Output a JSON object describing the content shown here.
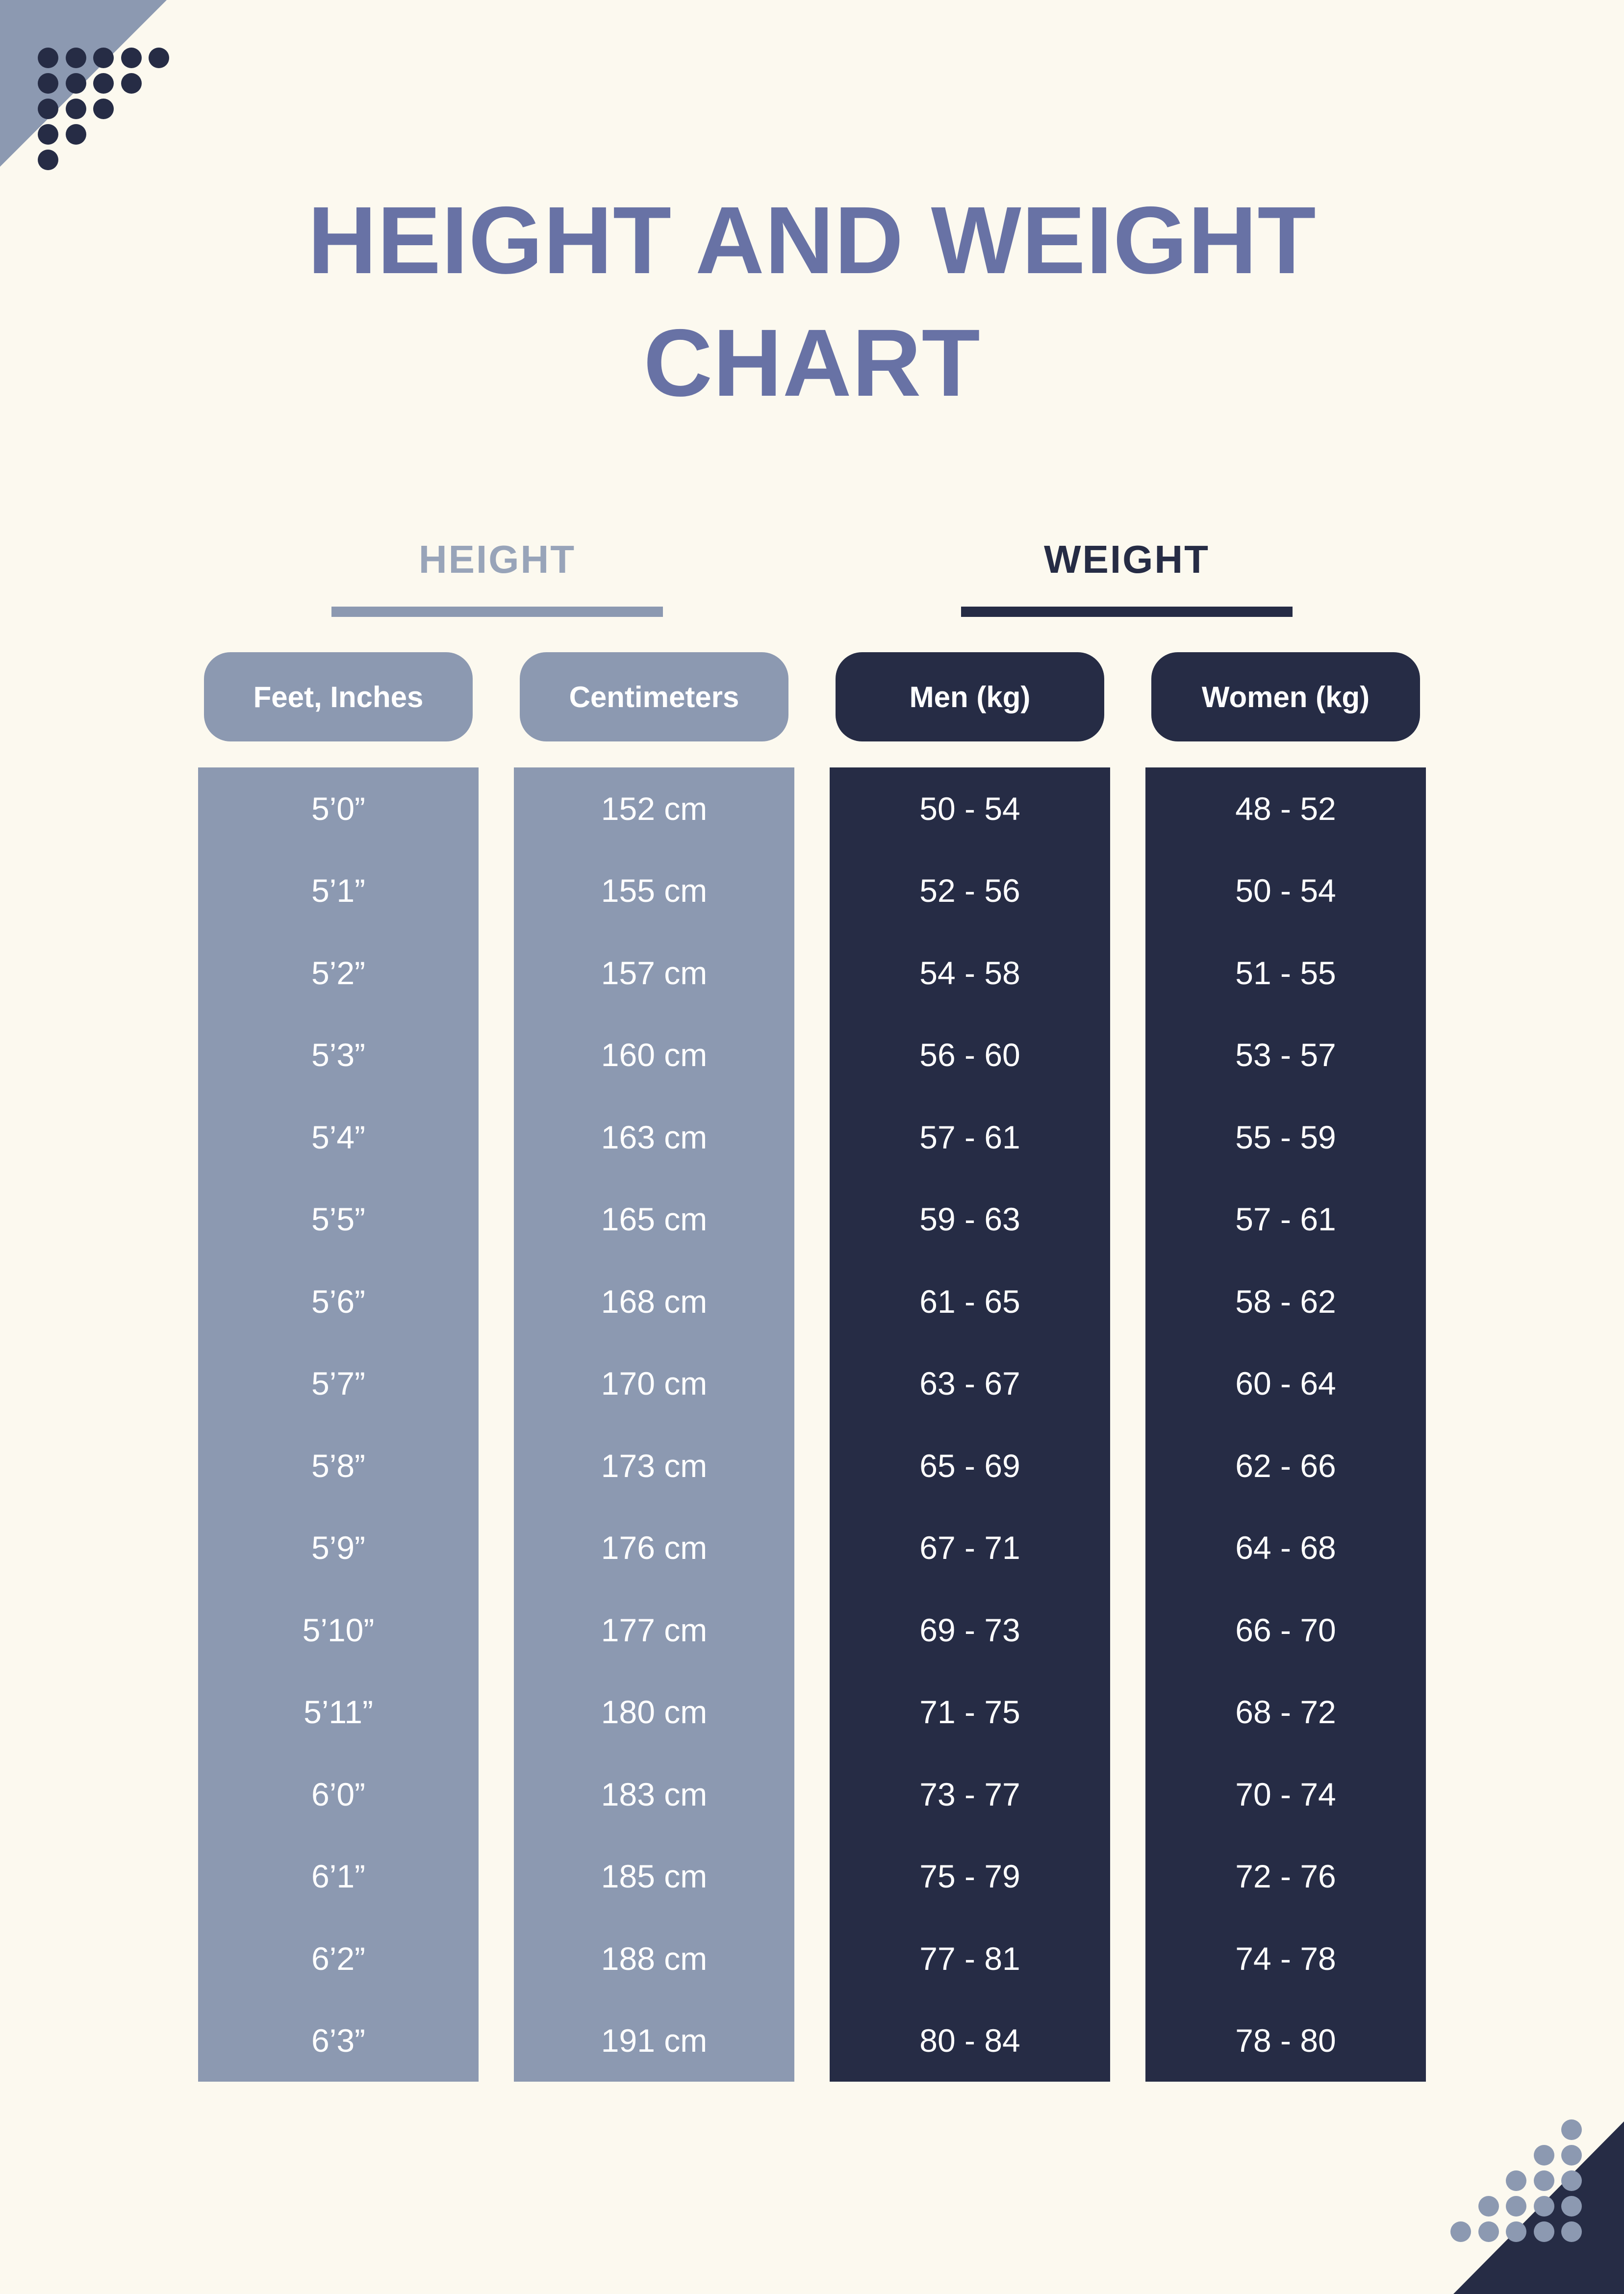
{
  "page": {
    "title_line1": "HEIGHT AND WEIGHT",
    "title_line2": "CHART"
  },
  "sections": {
    "height_label": "HEIGHT",
    "weight_label": "WEIGHT"
  },
  "chart_data": {
    "type": "table",
    "title": "HEIGHT AND WEIGHT CHART",
    "groups": [
      {
        "label": "HEIGHT",
        "column_indexes": [
          0,
          1
        ]
      },
      {
        "label": "WEIGHT",
        "column_indexes": [
          2,
          3
        ]
      }
    ],
    "columns": [
      {
        "header": "Feet, Inches",
        "values": [
          "5’0”",
          "5’1”",
          "5’2”",
          "5’3”",
          "5’4”",
          "5’5”",
          "5’6”",
          "5’7”",
          "5’8”",
          "5’9”",
          "5’10”",
          "5’11”",
          "6’0”",
          "6’1”",
          "6’2”",
          "6’3”"
        ]
      },
      {
        "header": "Centimeters",
        "values": [
          "152 cm",
          "155 cm",
          "157 cm",
          "160 cm",
          "163 cm",
          "165 cm",
          "168 cm",
          "170 cm",
          "173 cm",
          "176 cm",
          "177 cm",
          "180 cm",
          "183 cm",
          "185 cm",
          "188 cm",
          "191 cm"
        ]
      },
      {
        "header": "Men (kg)",
        "values": [
          "50 - 54",
          "52 - 56",
          "54 - 58",
          "56 - 60",
          "57 - 61",
          "59 - 63",
          "61 - 65",
          "63 - 67",
          "65 - 69",
          "67 - 71",
          "69 - 73",
          "71 - 75",
          "73 - 77",
          "75 - 79",
          "77 - 81",
          "80 - 84"
        ]
      },
      {
        "header": "Women (kg)",
        "values": [
          "48 - 52",
          "50 - 54",
          "51 - 55",
          "53 - 57",
          "55 - 59",
          "57 - 61",
          "58 - 62",
          "60 - 64",
          "62 - 66",
          "64 - 68",
          "66 - 70",
          "68 - 72",
          "70 - 74",
          "72 - 76",
          "74 - 78",
          "78 - 80"
        ]
      }
    ]
  },
  "colors": {
    "bg": "#FCF9EF",
    "slate": "#8C99B1",
    "navy": "#262C45",
    "title": "#6872A5",
    "label-light": "#98A4B9",
    "white": "#FFFFFF"
  }
}
